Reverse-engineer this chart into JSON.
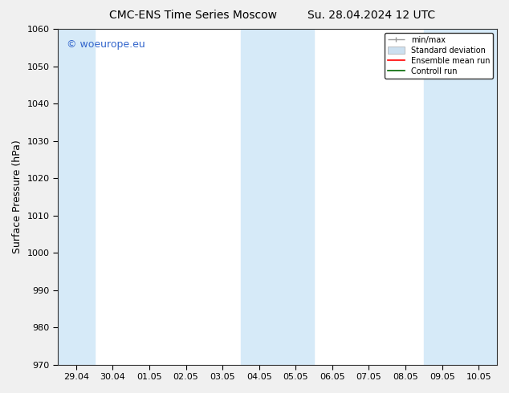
{
  "title_left": "CMC-ENS Time Series Moscow",
  "title_right": "Su. 28.04.2024 12 UTC",
  "ylabel": "Surface Pressure (hPa)",
  "ylim": [
    970,
    1060
  ],
  "yticks": [
    970,
    980,
    990,
    1000,
    1010,
    1020,
    1030,
    1040,
    1050,
    1060
  ],
  "xtick_labels": [
    "29.04",
    "30.04",
    "01.05",
    "02.05",
    "03.05",
    "04.05",
    "05.05",
    "06.05",
    "07.05",
    "08.05",
    "09.05",
    "10.05"
  ],
  "xtick_positions": [
    0,
    1,
    2,
    3,
    4,
    5,
    6,
    7,
    8,
    9,
    10,
    11
  ],
  "xlim": [
    -0.5,
    11.5
  ],
  "bg_color": "#f0f0f0",
  "plot_bg_color": "#ffffff",
  "shaded_bands": [
    {
      "x_start": -0.5,
      "x_end": 0.5,
      "color": "#d6eaf8"
    },
    {
      "x_start": 4.5,
      "x_end": 6.5,
      "color": "#d6eaf8"
    },
    {
      "x_start": 9.5,
      "x_end": 11.5,
      "color": "#d6eaf8"
    }
  ],
  "watermark_text": "© woeurope.eu",
  "watermark_color": "#3366cc",
  "legend_labels": [
    "min/max",
    "Standard deviation",
    "Ensemble mean run",
    "Controll run"
  ],
  "legend_colors": [
    "#999999",
    "#cce0f0",
    "#ff0000",
    "#006600"
  ],
  "title_fontsize": 10,
  "axis_label_fontsize": 9,
  "tick_fontsize": 8,
  "watermark_fontsize": 9
}
